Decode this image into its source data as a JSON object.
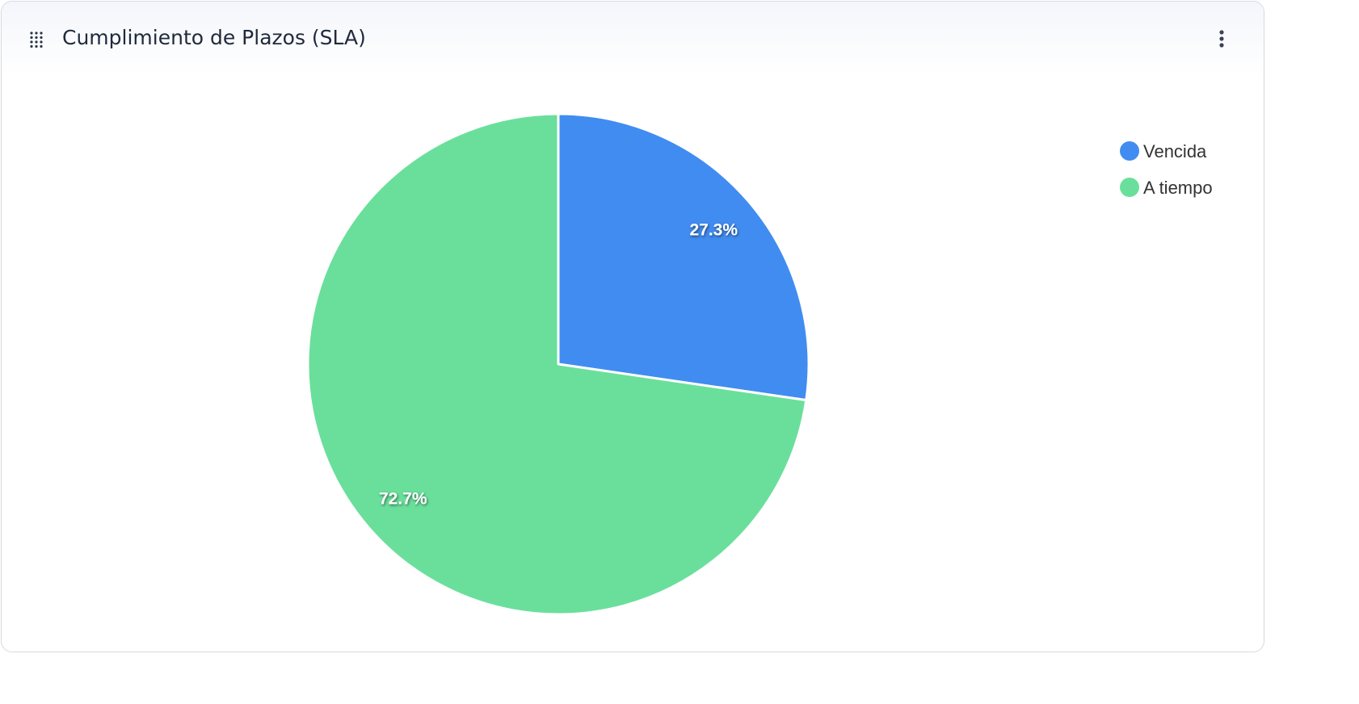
{
  "chart_data": {
    "type": "pie",
    "title": "Cumplimiento de Plazos (SLA)",
    "categories": [
      "Vencida",
      "A tiempo"
    ],
    "values": [
      27.3,
      72.7
    ],
    "value_labels": [
      "27.3%",
      "72.7%"
    ],
    "colors": [
      "#418cf0",
      "#6adf9b"
    ],
    "legend": "top-right"
  }
}
